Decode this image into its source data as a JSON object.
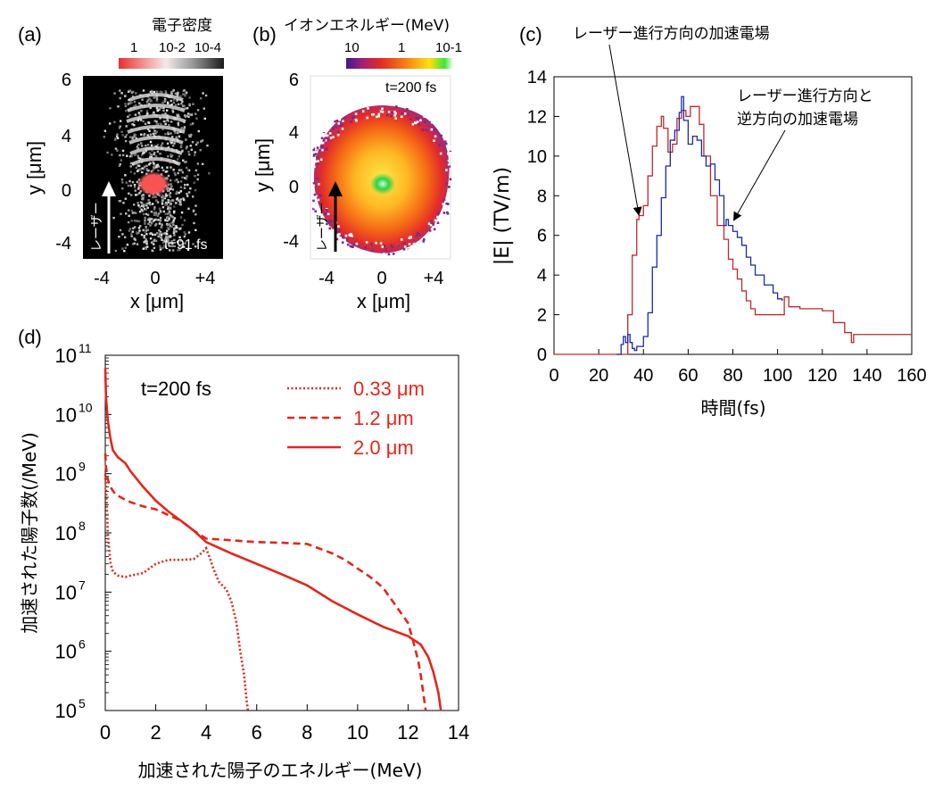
{
  "panels": {
    "a": {
      "label": "(a)",
      "colorbar_title": "電子密度",
      "colorbar_ticks": [
        "1",
        "10-2",
        "10-4"
      ],
      "y_ticks": [
        "6",
        "4",
        "2",
        "0",
        "-2",
        "-4"
      ],
      "x_ticks": [
        "-4",
        "0",
        "+4"
      ],
      "xlabel": "x [μm]",
      "ylabel": "y [μm]",
      "time": "t=91 fs",
      "laser_label": "レーザー"
    },
    "b": {
      "label": "(b)",
      "colorbar_title": "イオンエネルギー(MeV)",
      "colorbar_ticks": [
        "10",
        "1",
        "10-1"
      ],
      "y_ticks": [
        "6",
        "4",
        "2",
        "0",
        "-2",
        "-4"
      ],
      "x_ticks": [
        "-4",
        "0",
        "+4"
      ],
      "xlabel": "x [μm]",
      "ylabel": "y [μm]",
      "time": "t=200 fs",
      "laser_label": "レーザー"
    },
    "c": {
      "label": "(c)",
      "annotation_1": "レーザー進行方向の加速電場",
      "annotation_2_line1": "レーザー進行方向と",
      "annotation_2_line2": "逆方向の加速電場"
    },
    "d": {
      "label": "(d)",
      "time": "t=200 fs"
    }
  },
  "colors": {
    "red_series": "#c0282b",
    "blue_series": "#1a2aa8",
    "plot_red": "#e3261c"
  },
  "chart_data": [
    {
      "panel": "c",
      "type": "line",
      "title": "",
      "xlabel": "時間(fs)",
      "ylabel": "|E| (TV/m)",
      "xlim": [
        0,
        160
      ],
      "ylim": [
        0,
        14
      ],
      "xticks": [
        0,
        20,
        40,
        60,
        80,
        100,
        120,
        140,
        160
      ],
      "yticks": [
        0,
        2,
        4,
        6,
        8,
        10,
        12,
        14
      ],
      "series": [
        {
          "name": "レーザー進行方向の加速電場",
          "color": "#c0282b",
          "x": [
            0,
            30,
            33,
            35,
            37,
            38,
            40,
            42,
            44,
            46,
            48,
            49,
            51,
            53,
            55,
            57,
            59,
            61,
            63,
            65,
            67,
            70,
            73,
            76,
            78,
            80,
            82,
            84,
            86,
            88,
            90,
            95,
            100,
            103,
            105,
            110,
            120,
            125,
            130,
            133,
            134,
            136,
            140,
            150,
            160
          ],
          "y": [
            0,
            0,
            2,
            5,
            6.8,
            7.0,
            7.5,
            9.0,
            10.5,
            11.5,
            12.0,
            11.4,
            10.2,
            10.6,
            11.9,
            12.3,
            12.0,
            12.5,
            12.5,
            11.6,
            10.0,
            8.0,
            6.5,
            5.8,
            4.8,
            4.3,
            3.8,
            3.2,
            2.7,
            2.3,
            2.0,
            2.0,
            2.0,
            2.9,
            2.4,
            2.3,
            2.2,
            1.6,
            1.1,
            0.6,
            1.0,
            1.0,
            1.0,
            1.0,
            1.0
          ]
        },
        {
          "name": "レーザー進行方向と逆方向の加速電場",
          "color": "#1a2aa8",
          "x": [
            28,
            30,
            31,
            32,
            33,
            34,
            35,
            36,
            37,
            40,
            42,
            44,
            46,
            48,
            50,
            52,
            54,
            56,
            57,
            58,
            60,
            62,
            64,
            66,
            68,
            70,
            72,
            74,
            76,
            77,
            78,
            80,
            82,
            84,
            86,
            88,
            90,
            94,
            98,
            100,
            102
          ],
          "y": [
            0,
            0.5,
            0.9,
            0.6,
            1.0,
            0.6,
            0.3,
            0.2,
            0.4,
            0.9,
            2.1,
            4.4,
            6.0,
            7.9,
            9.5,
            10.8,
            11.3,
            12.2,
            13.0,
            11.8,
            10.6,
            11.0,
            10.8,
            10.0,
            9.5,
            9.6,
            8.8,
            8.0,
            6.5,
            6.8,
            6.5,
            6.2,
            5.9,
            5.5,
            4.9,
            4.5,
            4.0,
            3.5,
            3.1,
            2.8,
            2.7
          ]
        }
      ]
    },
    {
      "panel": "d",
      "type": "line",
      "title": "",
      "xlabel": "加速された陽子のエネルギー(MeV)",
      "ylabel": "加速された陽子数(/MeV)",
      "xlim": [
        0,
        14
      ],
      "ylim": [
        100000,
        100000000000
      ],
      "yscale": "log",
      "xticks": [
        0,
        2,
        4,
        6,
        8,
        10,
        12,
        14
      ],
      "ytick_exponents": [
        5,
        6,
        7,
        8,
        9,
        10,
        11
      ],
      "legend_position": "top-right",
      "series": [
        {
          "name": "0.33 μm",
          "dash": "dotted",
          "x": [
            0.0,
            0.05,
            0.1,
            0.2,
            0.3,
            0.5,
            0.8,
            1.0,
            1.5,
            2.0,
            2.5,
            3.0,
            3.5,
            3.8,
            4.0,
            4.1,
            4.2,
            4.3,
            4.5,
            4.8,
            5.0,
            5.2,
            5.35,
            5.5,
            5.6,
            5.65
          ],
          "y": [
            1000000000.0,
            400000000.0,
            100000000.0,
            32000000.0,
            22000000.0,
            19000000.0,
            18000000.0,
            19000000.0,
            21000000.0,
            30000000.0,
            35000000.0,
            35000000.0,
            36000000.0,
            45000000.0,
            55000000.0,
            42000000.0,
            32000000.0,
            24000000.0,
            15000000.0,
            11000000.0,
            7000000.0,
            3000000.0,
            1000000.0,
            400000.0,
            150000.0,
            100000.0
          ]
        },
        {
          "name": "1.2 μm",
          "dash": "dashed",
          "x": [
            0.0,
            0.03,
            0.1,
            0.2,
            0.4,
            0.7,
            1.0,
            1.5,
            2.0,
            2.5,
            3.0,
            3.5,
            4.0,
            5.0,
            6.0,
            7.0,
            8.0,
            9.0,
            9.5,
            10.0,
            10.5,
            11.0,
            11.5,
            12.0,
            12.2,
            12.4,
            12.5,
            12.6,
            12.7
          ],
          "y": [
            2200000000.0,
            1300000000.0,
            800000000.0,
            600000000.0,
            450000000.0,
            380000000.0,
            330000000.0,
            280000000.0,
            250000000.0,
            200000000.0,
            160000000.0,
            110000000.0,
            80000000.0,
            75000000.0,
            70000000.0,
            68000000.0,
            65000000.0,
            45000000.0,
            35000000.0,
            25000000.0,
            18000000.0,
            12000000.0,
            6000000.0,
            3000000.0,
            1500000.0,
            700000.0,
            400000.0,
            200000.0,
            100000.0
          ]
        },
        {
          "name": "2.0 μm",
          "dash": "solid",
          "x": [
            0.0,
            0.03,
            0.1,
            0.2,
            0.3,
            0.5,
            0.8,
            1.0,
            1.5,
            2.0,
            2.5,
            3.0,
            3.5,
            4.0,
            5.0,
            6.0,
            7.0,
            8.0,
            9.0,
            10.0,
            11.0,
            12.0,
            12.5,
            12.8,
            13.0,
            13.2,
            13.3
          ],
          "y": [
            60000000000.0,
            20000000000.0,
            8000000000.0,
            4000000000.0,
            2500000000.0,
            1900000000.0,
            1500000000.0,
            1100000000.0,
            600000000.0,
            350000000.0,
            230000000.0,
            160000000.0,
            110000000.0,
            70000000.0,
            45000000.0,
            30000000.0,
            20000000.0,
            13000000.0,
            7000000.0,
            4200000.0,
            2600000.0,
            1800000.0,
            1300000.0,
            800000.0,
            450000.0,
            200000.0,
            100000.0
          ]
        }
      ]
    }
  ]
}
